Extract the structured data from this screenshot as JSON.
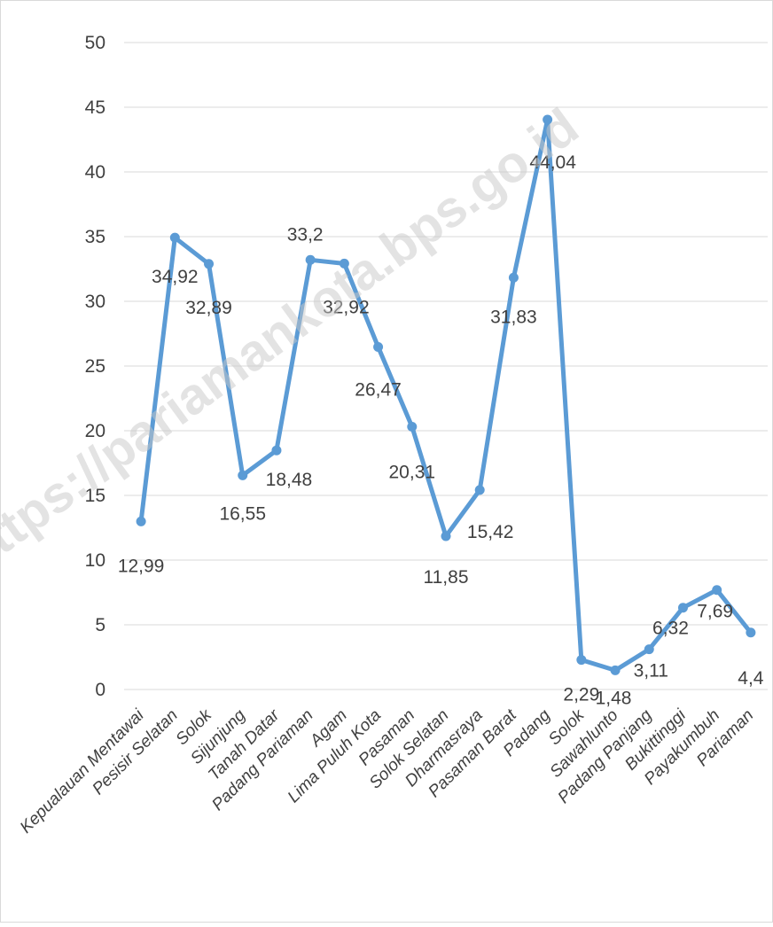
{
  "chart_data": {
    "type": "line",
    "categories": [
      "Kepualauan Mentawai",
      "Pesisir Selatan",
      "Solok",
      "Sijunjung",
      "Tanah Datar",
      "Padang Pariaman",
      "Agam",
      "Lima Puluh Kota",
      "Pasaman",
      "Solok Selatan",
      "Dharmasraya",
      "Pasaman Barat",
      "Padang",
      "Solok",
      "Sawahlunto",
      "Padang Panjang",
      "Bukittinggi",
      "Payakumbuh",
      "Pariaman"
    ],
    "values": [
      12.99,
      34.92,
      32.89,
      16.55,
      18.48,
      33.2,
      32.92,
      26.47,
      20.31,
      11.85,
      15.42,
      31.83,
      44.04,
      2.29,
      1.48,
      3.11,
      6.32,
      7.69,
      4.4
    ],
    "data_labels": [
      "12,99",
      "34,92",
      "32,89",
      "16,55",
      "18,48",
      "33,2",
      "32,92",
      "26,47",
      "20,31",
      "11,85",
      "15,42",
      "31,83",
      "44,04",
      "2,29",
      "1,48",
      "3,11",
      "6,32",
      "7,69",
      "4,4"
    ],
    "y_ticks": [
      "0",
      "5",
      "10",
      "15",
      "20",
      "25",
      "30",
      "35",
      "40",
      "45",
      "50"
    ],
    "ylim": [
      0,
      50
    ],
    "grid": true,
    "line_color": "#5b9bd5",
    "grid_color": "#d9d9d9",
    "text_color": "#404040"
  },
  "watermark": "https://pariamankota.bps.go.id"
}
